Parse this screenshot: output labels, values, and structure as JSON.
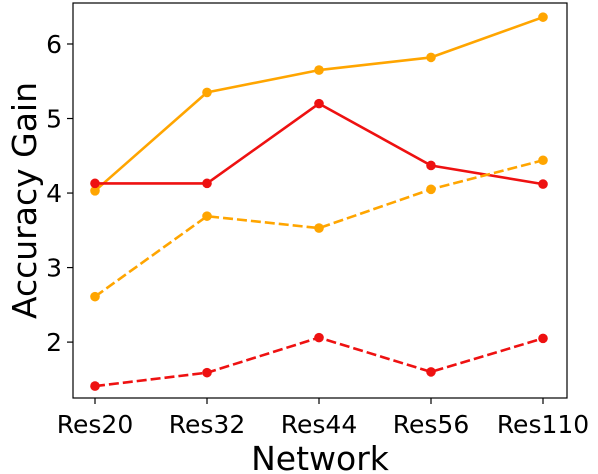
{
  "chart_data": {
    "type": "line",
    "title": "",
    "xlabel": "Network",
    "ylabel": "Accuracy Gain",
    "categories": [
      "Res20",
      "Res32",
      "Res44",
      "Res56",
      "Res110"
    ],
    "ylim": [
      1.25,
      6.55
    ],
    "yticks": [
      2,
      3,
      4,
      5,
      6
    ],
    "grid": false,
    "legend": "none",
    "series": [
      {
        "color": "#FFA500",
        "style": "solid",
        "values": [
          4.03,
          5.35,
          5.65,
          5.82,
          6.36
        ]
      },
      {
        "color": "#EE1111",
        "style": "solid",
        "values": [
          4.13,
          4.13,
          5.2,
          4.37,
          4.12
        ]
      },
      {
        "color": "#FFA500",
        "style": "dashed",
        "values": [
          2.61,
          3.69,
          3.53,
          4.05,
          4.44
        ]
      },
      {
        "color": "#EE1111",
        "style": "dashed",
        "values": [
          1.41,
          1.59,
          2.06,
          1.6,
          2.05
        ]
      }
    ]
  }
}
